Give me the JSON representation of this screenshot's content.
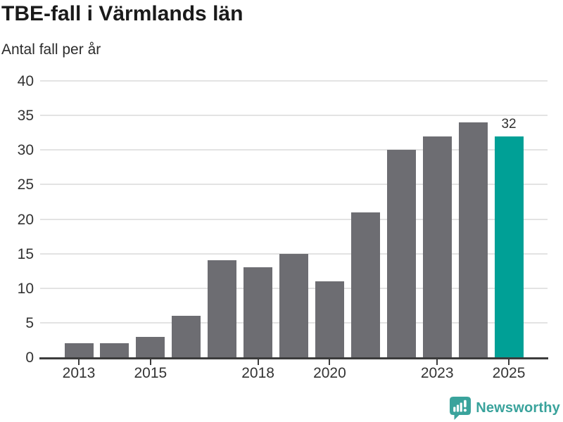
{
  "header": {
    "title": "TBE-fall i Värmlands län",
    "subtitle": "Antal fall per år"
  },
  "chart_data": {
    "type": "bar",
    "title": "TBE-fall i Värmlands län",
    "subtitle": "Antal fall per år",
    "xlabel": "",
    "ylabel": "Antal fall per år",
    "categories": [
      "2013",
      "2014",
      "2015",
      "2016",
      "2017",
      "2018",
      "2019",
      "2020",
      "2021",
      "2022",
      "2023",
      "2024",
      "2025"
    ],
    "values": [
      2,
      2,
      3,
      6,
      14,
      13,
      15,
      11,
      21,
      30,
      32,
      34,
      32
    ],
    "ylim": [
      0,
      40
    ],
    "yticks": [
      0,
      5,
      10,
      15,
      20,
      25,
      30,
      35,
      40
    ],
    "xtick_labels": [
      "2013",
      "2015",
      "2018",
      "2020",
      "2023",
      "2025"
    ],
    "xtick_indices": [
      0,
      2,
      5,
      7,
      10,
      12
    ],
    "grid": true,
    "legend_position": "none",
    "bar_color": "#6d6d72",
    "highlight_index": 12,
    "highlight_color": "#00a096",
    "annotations": [
      {
        "index": 12,
        "text": "32"
      }
    ]
  },
  "footer": {
    "brand": "Newsworthy",
    "brand_color": "#3aa39c",
    "logo_icon": "newsworthy-speech-bubble-chart-icon"
  }
}
